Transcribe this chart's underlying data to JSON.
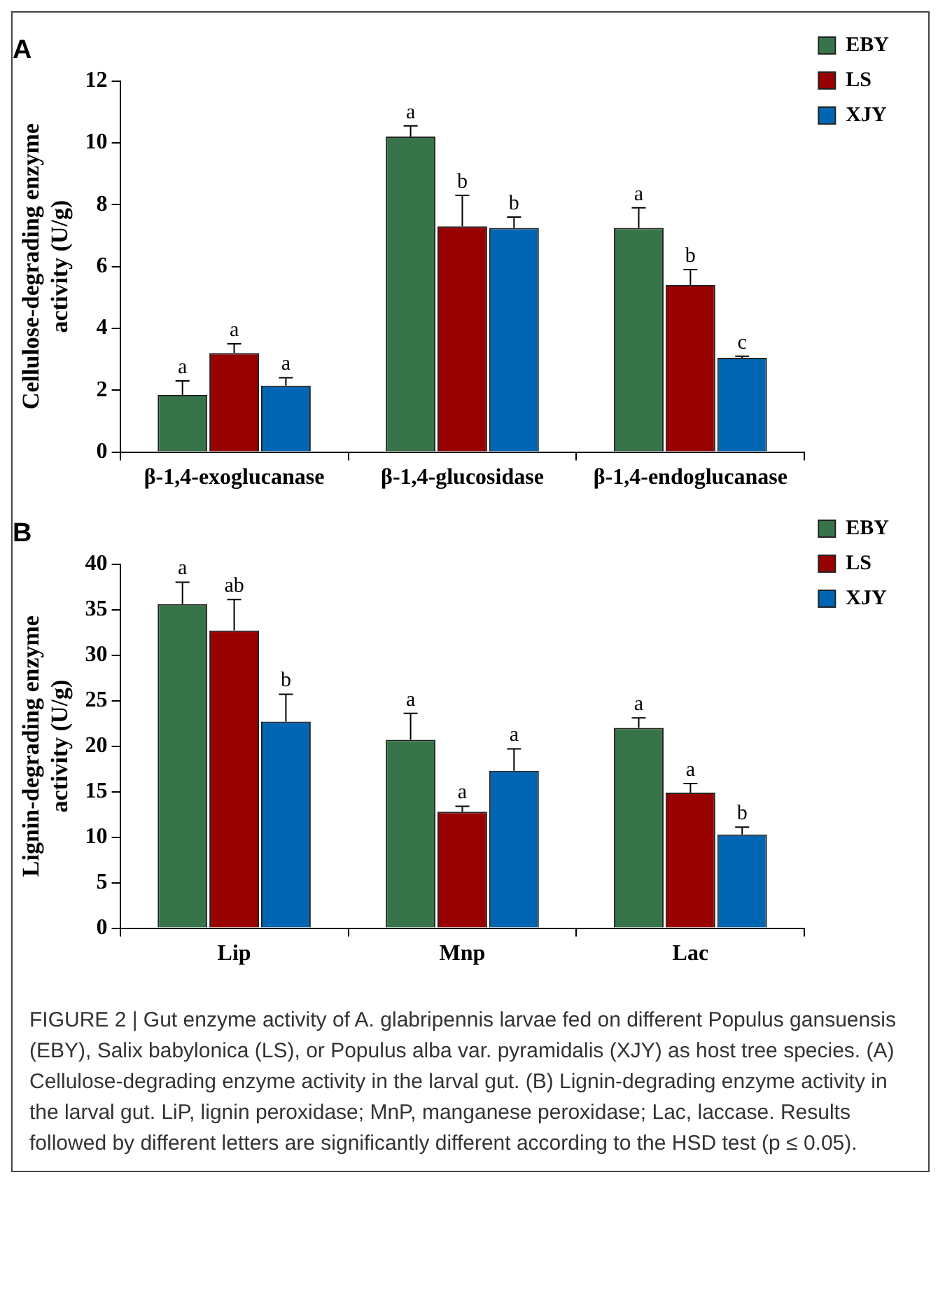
{
  "chart_data": [
    {
      "type": "bar",
      "title": "A",
      "ylabel": "Cellulose-degrading enzyme activity (U/g)",
      "categories": [
        "β-1,4-exoglucanase",
        "β-1,4-glucosidase",
        "β-1,4-endoglucanase"
      ],
      "series": [
        {
          "name": "EBY",
          "color": "#38744a",
          "values": [
            1.85,
            10.2,
            7.25
          ],
          "errors": [
            0.45,
            0.35,
            0.65
          ]
        },
        {
          "name": "LS",
          "color": "#990000",
          "values": [
            3.2,
            7.3,
            5.4
          ],
          "errors": [
            0.3,
            1.0,
            0.5
          ]
        },
        {
          "name": "XJY",
          "color": "#0066b3",
          "values": [
            2.15,
            7.25,
            3.05
          ],
          "errors": [
            0.25,
            0.35,
            0.05
          ]
        }
      ],
      "ylim": [
        0,
        12
      ],
      "yticks": [
        0,
        2,
        4,
        6,
        8,
        10,
        12
      ],
      "grid": false,
      "legend": "top right",
      "annotations": [
        "a",
        "a",
        "a",
        "a",
        "b",
        "b",
        "a",
        "b",
        "c"
      ]
    },
    {
      "type": "bar",
      "title": "B",
      "ylabel": "Lignin-degrading enzyme activity (U/g)",
      "categories": [
        "Lip",
        "Mnp",
        "Lac"
      ],
      "series": [
        {
          "name": "EBY",
          "color": "#38744a",
          "values": [
            35.6,
            20.7,
            22.0
          ],
          "errors": [
            2.4,
            2.9,
            1.1
          ]
        },
        {
          "name": "LS",
          "color": "#990000",
          "values": [
            32.7,
            12.8,
            14.9
          ],
          "errors": [
            3.4,
            0.6,
            1.0
          ]
        },
        {
          "name": "XJY",
          "color": "#0066b3",
          "values": [
            22.7,
            17.3,
            10.3
          ],
          "errors": [
            3.0,
            2.4,
            0.8
          ]
        }
      ],
      "ylim": [
        0,
        40
      ],
      "yticks": [
        0,
        5,
        10,
        15,
        20,
        25,
        30,
        35,
        40
      ],
      "grid": false,
      "legend": "top right",
      "annotations": [
        "a",
        "a",
        "a",
        "ab",
        "a",
        "a",
        "b",
        "a",
        "b",
        "FIGURE 2 | Gut enzyme activity of A. glabripennis larvae fed on different Populus gansuensis (EBY), Salix babylonica (LS), or Populus alba var. pyramidalis (XJY) as host tree species. (A) Cellulose-degrading enzyme activity in the larval gut. (B) Lignin-degrading enzyme activity in the larval gut. LiP, lignin peroxidase; MnP, manganese peroxidase; Lac, laccase. Results followed by different letters are significantly different according to the HSD test (p ≤ 0.05)."
      ]
    }
  ]
}
